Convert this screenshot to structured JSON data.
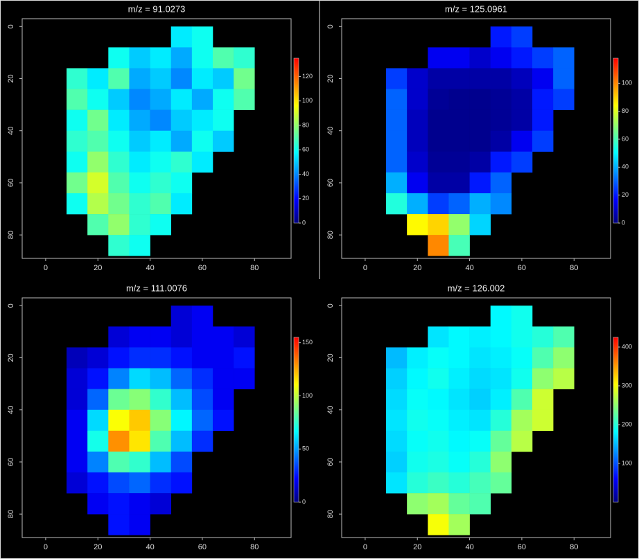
{
  "chart_data": [
    {
      "type": "heatmap",
      "title": "m/z = 91.0273",
      "x": [
        4,
        12,
        20,
        28,
        36,
        44,
        52,
        60,
        68,
        76,
        84
      ],
      "y": [
        4,
        12,
        20,
        28,
        36,
        44,
        52,
        60,
        68,
        76,
        84
      ],
      "values": [
        [
          null,
          null,
          null,
          null,
          null,
          null,
          55,
          60,
          null,
          null,
          null
        ],
        [
          null,
          null,
          null,
          60,
          50,
          55,
          45,
          60,
          70,
          65,
          null
        ],
        [
          null,
          65,
          55,
          70,
          45,
          50,
          40,
          55,
          50,
          75,
          null
        ],
        [
          null,
          70,
          60,
          50,
          40,
          45,
          55,
          45,
          60,
          70,
          null
        ],
        [
          null,
          60,
          75,
          55,
          45,
          40,
          50,
          55,
          60,
          null,
          null
        ],
        [
          null,
          65,
          70,
          60,
          50,
          55,
          45,
          60,
          50,
          null,
          null
        ],
        [
          null,
          60,
          80,
          65,
          55,
          60,
          65,
          55,
          null,
          null,
          null
        ],
        [
          null,
          75,
          90,
          70,
          60,
          65,
          60,
          null,
          null,
          null,
          null
        ],
        [
          null,
          60,
          85,
          75,
          65,
          70,
          55,
          null,
          null,
          null,
          null
        ],
        [
          null,
          null,
          70,
          80,
          65,
          60,
          null,
          null,
          null,
          null,
          null
        ],
        [
          null,
          null,
          null,
          65,
          60,
          null,
          null,
          null,
          null,
          null,
          null
        ]
      ],
      "xlim": [
        -9,
        94
      ],
      "ylim": [
        -3,
        89
      ],
      "y_reversed": true,
      "xticks": [
        0,
        20,
        40,
        60,
        80
      ],
      "yticks": [
        0,
        20,
        40,
        60,
        80
      ],
      "colorbar_lim": [
        0,
        135
      ],
      "colorbar_ticks": [
        0,
        20,
        40,
        60,
        80,
        100,
        120
      ],
      "colormap": [
        "#00007f",
        "#0000ff",
        "#007fff",
        "#00ffff",
        "#7fff7f",
        "#ffff00",
        "#ff7f00",
        "#ff0000"
      ]
    },
    {
      "type": "heatmap",
      "title": "m/z = 125.0961",
      "x": [
        4,
        12,
        20,
        28,
        36,
        44,
        52,
        60,
        68,
        76,
        84
      ],
      "y": [
        4,
        12,
        20,
        28,
        36,
        44,
        52,
        60,
        68,
        76,
        84
      ],
      "values": [
        [
          null,
          null,
          null,
          null,
          null,
          null,
          20,
          25,
          null,
          null,
          null
        ],
        [
          null,
          null,
          null,
          15,
          15,
          10,
          15,
          20,
          25,
          30,
          null
        ],
        [
          null,
          25,
          10,
          5,
          5,
          5,
          5,
          8,
          15,
          30,
          null
        ],
        [
          null,
          30,
          10,
          3,
          2,
          2,
          3,
          5,
          20,
          25,
          null
        ],
        [
          null,
          30,
          8,
          2,
          2,
          2,
          3,
          5,
          20,
          null,
          null
        ],
        [
          null,
          30,
          8,
          2,
          2,
          2,
          5,
          15,
          25,
          null,
          null
        ],
        [
          null,
          30,
          10,
          3,
          3,
          5,
          20,
          25,
          null,
          null,
          null
        ],
        [
          null,
          40,
          15,
          5,
          5,
          20,
          30,
          null,
          null,
          null,
          null
        ],
        [
          null,
          55,
          40,
          25,
          30,
          40,
          35,
          null,
          null,
          null,
          null
        ],
        [
          null,
          null,
          85,
          90,
          70,
          45,
          null,
          null,
          null,
          null,
          null
        ],
        [
          null,
          null,
          null,
          100,
          60,
          null,
          null,
          null,
          null,
          null,
          null
        ]
      ],
      "xlim": [
        -9,
        94
      ],
      "ylim": [
        -3,
        89
      ],
      "y_reversed": true,
      "xticks": [
        0,
        20,
        40,
        60,
        80
      ],
      "yticks": [
        0,
        20,
        40,
        60,
        80
      ],
      "colorbar_lim": [
        0,
        118
      ],
      "colorbar_ticks": [
        0,
        20,
        40,
        60,
        80,
        100
      ],
      "colormap": [
        "#00007f",
        "#0000ff",
        "#007fff",
        "#00ffff",
        "#7fff7f",
        "#ffff00",
        "#ff7f00",
        "#ff0000"
      ]
    },
    {
      "type": "heatmap",
      "title": "m/z = 111.0076",
      "x": [
        4,
        12,
        20,
        28,
        36,
        44,
        52,
        60,
        68,
        76,
        84
      ],
      "y": [
        4,
        12,
        20,
        28,
        36,
        44,
        52,
        60,
        68,
        76,
        84
      ],
      "values": [
        [
          null,
          null,
          null,
          null,
          null,
          null,
          15,
          20,
          null,
          null,
          null
        ],
        [
          null,
          null,
          null,
          15,
          20,
          20,
          15,
          20,
          20,
          15,
          null
        ],
        [
          null,
          10,
          15,
          25,
          30,
          30,
          25,
          20,
          20,
          25,
          null
        ],
        [
          null,
          15,
          25,
          45,
          60,
          55,
          40,
          30,
          20,
          20,
          null
        ],
        [
          null,
          15,
          40,
          85,
          90,
          75,
          55,
          35,
          20,
          null,
          null
        ],
        [
          null,
          20,
          60,
          110,
          120,
          90,
          65,
          40,
          25,
          null,
          null
        ],
        [
          null,
          20,
          70,
          130,
          115,
          80,
          55,
          30,
          null,
          null,
          null
        ],
        [
          null,
          20,
          45,
          80,
          75,
          55,
          35,
          null,
          null,
          null,
          null
        ],
        [
          null,
          15,
          25,
          35,
          40,
          30,
          25,
          null,
          null,
          null,
          null
        ],
        [
          null,
          null,
          20,
          25,
          20,
          15,
          null,
          null,
          null,
          null,
          null
        ],
        [
          null,
          null,
          null,
          25,
          20,
          null,
          null,
          null,
          null,
          null,
          null
        ]
      ],
      "xlim": [
        -9,
        94
      ],
      "ylim": [
        -3,
        89
      ],
      "y_reversed": true,
      "xticks": [
        0,
        20,
        40,
        60,
        80
      ],
      "yticks": [
        0,
        20,
        40,
        60,
        80
      ],
      "colorbar_lim": [
        0,
        155
      ],
      "colorbar_ticks": [
        0,
        50,
        100,
        150
      ],
      "colormap": [
        "#00007f",
        "#0000ff",
        "#007fff",
        "#00ffff",
        "#7fff7f",
        "#ffff00",
        "#ff7f00",
        "#ff0000"
      ]
    },
    {
      "type": "heatmap",
      "title": "m/z = 126.002",
      "x": [
        4,
        12,
        20,
        28,
        36,
        44,
        52,
        60,
        68,
        76,
        84
      ],
      "y": [
        4,
        12,
        20,
        28,
        36,
        44,
        52,
        60,
        68,
        76,
        84
      ],
      "values": [
        [
          null,
          null,
          null,
          null,
          null,
          null,
          180,
          190,
          null,
          null,
          null
        ],
        [
          null,
          null,
          null,
          170,
          180,
          175,
          180,
          190,
          200,
          220,
          null
        ],
        [
          null,
          150,
          175,
          185,
          180,
          170,
          175,
          185,
          220,
          250,
          null
        ],
        [
          null,
          160,
          180,
          190,
          175,
          165,
          170,
          190,
          250,
          270,
          null
        ],
        [
          null,
          165,
          185,
          180,
          170,
          160,
          175,
          220,
          280,
          null,
          null
        ],
        [
          null,
          170,
          190,
          185,
          175,
          170,
          200,
          260,
          280,
          null,
          null
        ],
        [
          null,
          165,
          185,
          190,
          180,
          185,
          230,
          270,
          null,
          null,
          null
        ],
        [
          null,
          160,
          190,
          195,
          185,
          200,
          250,
          null,
          null,
          null,
          null
        ],
        [
          null,
          170,
          200,
          210,
          200,
          215,
          230,
          null,
          null,
          null,
          null
        ],
        [
          null,
          null,
          250,
          260,
          230,
          220,
          null,
          null,
          null,
          null,
          null
        ],
        [
          null,
          null,
          null,
          300,
          260,
          null,
          null,
          null,
          null,
          null,
          null
        ]
      ],
      "xlim": [
        -9,
        94
      ],
      "ylim": [
        -3,
        89
      ],
      "y_reversed": true,
      "xticks": [
        0,
        20,
        40,
        60,
        80
      ],
      "yticks": [
        0,
        20,
        40,
        60,
        80
      ],
      "colorbar_lim": [
        0,
        425
      ],
      "colorbar_ticks": [
        100,
        200,
        300,
        400
      ],
      "colormap": [
        "#00007f",
        "#0000ff",
        "#007fff",
        "#00ffff",
        "#7fff7f",
        "#ffff00",
        "#ff7f00",
        "#ff0000"
      ]
    }
  ]
}
